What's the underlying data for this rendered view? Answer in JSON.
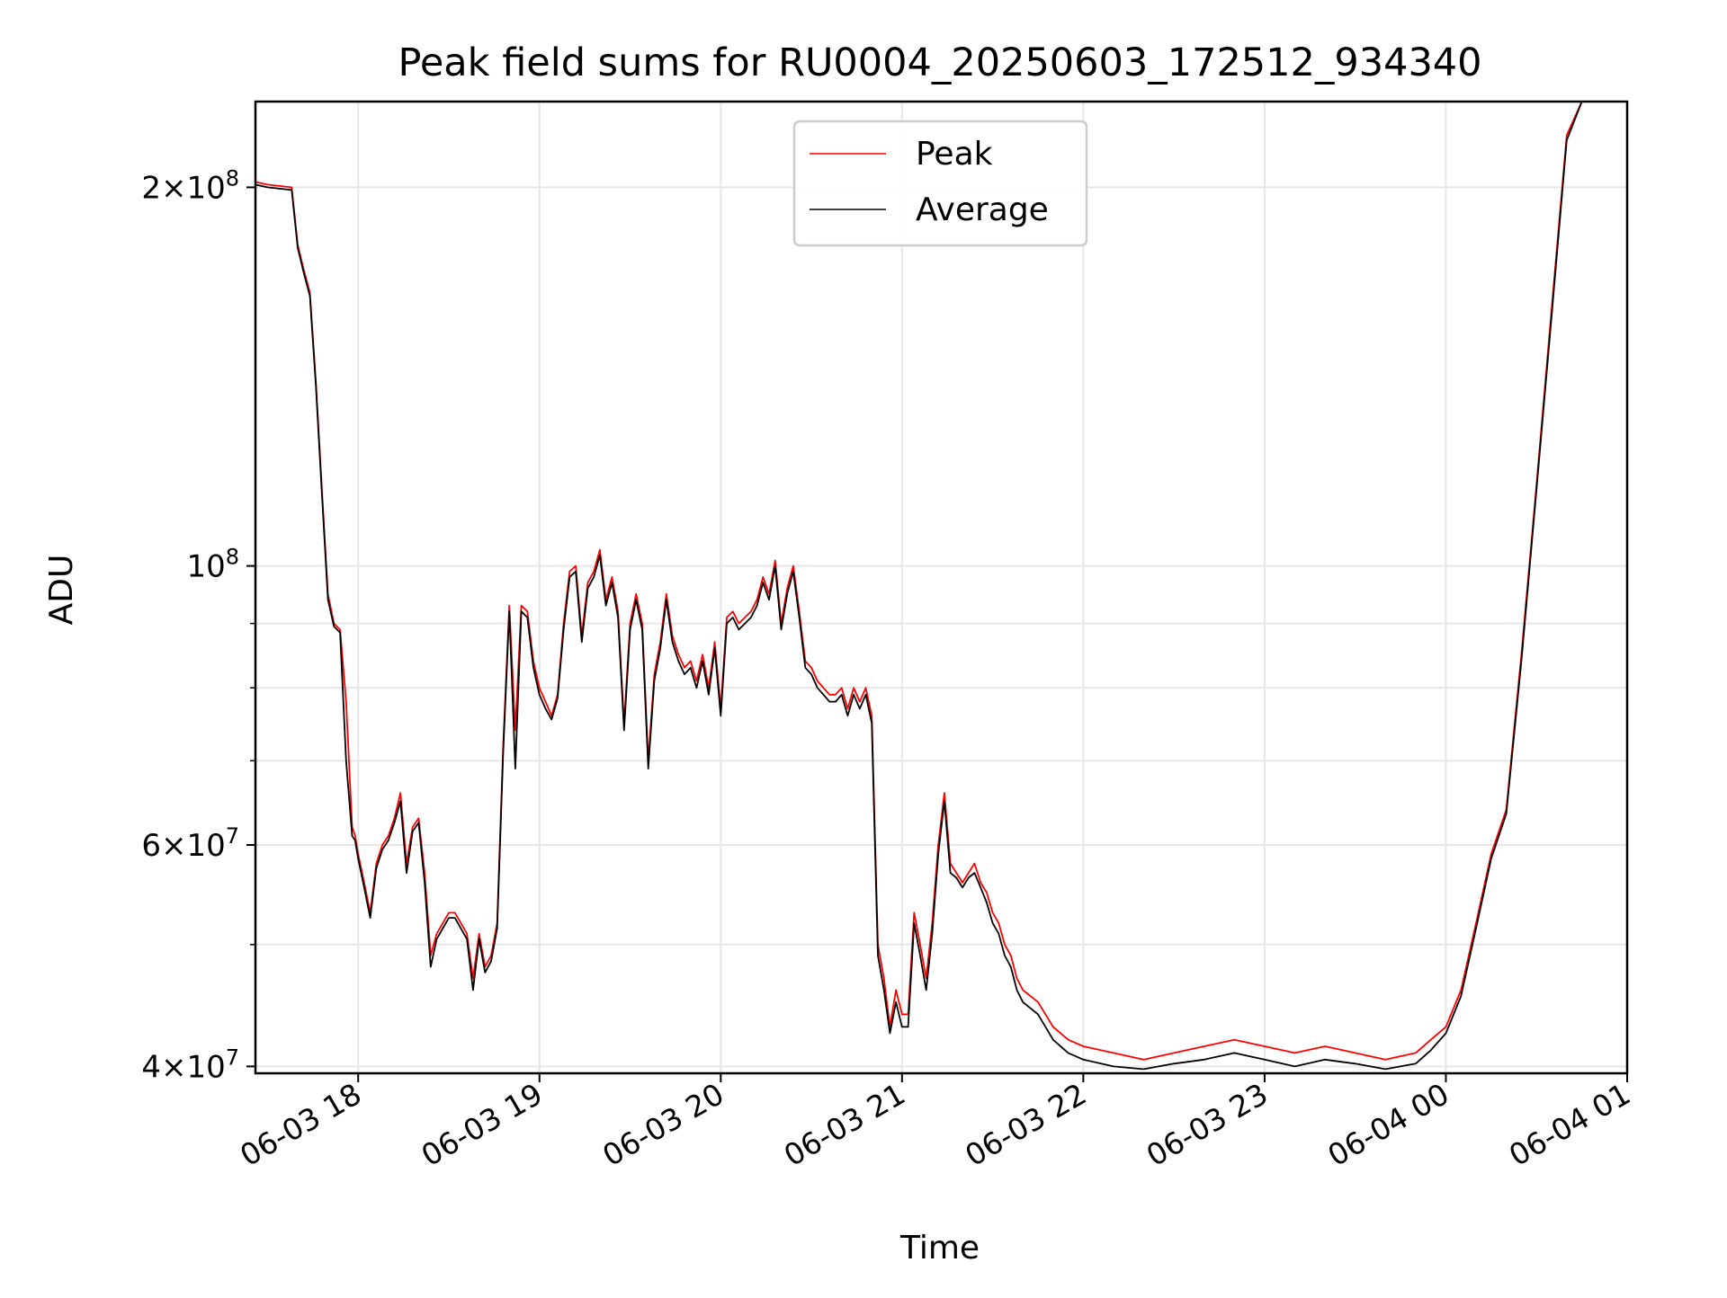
{
  "chart_data": {
    "type": "line",
    "title": "Peak field sums for RU0004_20250603_172512_934340",
    "xlabel": "Time",
    "ylabel": "ADU",
    "yscale": "log",
    "xlim": [
      "2025-06-03 17:26",
      "2025-06-04 01:00"
    ],
    "ylim": [
      39500000,
      234000000
    ],
    "x_ticks": [
      "06-03 18",
      "06-03 19",
      "06-03 20",
      "06-03 21",
      "06-03 22",
      "06-03 23",
      "06-04 00",
      "06-04 01"
    ],
    "y_ticks": [
      {
        "value": 40000000,
        "mantissa": "4",
        "exponent": "7"
      },
      {
        "value": 60000000,
        "mantissa": "6",
        "exponent": "7"
      },
      {
        "value": 100000000,
        "mantissa": "",
        "exponent": "8"
      },
      {
        "value": 200000000,
        "mantissa": "2",
        "exponent": "8"
      }
    ],
    "grid": true,
    "legend_position": "top-center",
    "series": [
      {
        "name": "Peak",
        "color": "#ff0000",
        "x": [
          "17:26",
          "17:30",
          "17:38",
          "17:40",
          "17:42",
          "17:44",
          "17:46",
          "17:48",
          "17:50",
          "17:52",
          "17:54",
          "17:56",
          "17:58",
          "17:59",
          "18:00",
          "18:02",
          "18:04",
          "18:06",
          "18:08",
          "18:10",
          "18:12",
          "18:14",
          "18:16",
          "18:18",
          "18:20",
          "18:22",
          "18:24",
          "18:26",
          "18:28",
          "18:30",
          "18:32",
          "18:34",
          "18:36",
          "18:38",
          "18:40",
          "18:42",
          "18:44",
          "18:46",
          "18:48",
          "18:50",
          "18:52",
          "18:54",
          "18:56",
          "18:58",
          "19:00",
          "19:02",
          "19:04",
          "19:06",
          "19:08",
          "19:10",
          "19:12",
          "19:14",
          "19:16",
          "19:18",
          "19:20",
          "19:22",
          "19:24",
          "19:26",
          "19:28",
          "19:30",
          "19:32",
          "19:34",
          "19:36",
          "19:38",
          "19:40",
          "19:42",
          "19:44",
          "19:46",
          "19:48",
          "19:50",
          "19:52",
          "19:54",
          "19:56",
          "19:58",
          "20:00",
          "20:02",
          "20:04",
          "20:06",
          "20:08",
          "20:10",
          "20:12",
          "20:14",
          "20:16",
          "20:18",
          "20:20",
          "20:22",
          "20:24",
          "20:26",
          "20:28",
          "20:30",
          "20:32",
          "20:34",
          "20:36",
          "20:38",
          "20:40",
          "20:42",
          "20:44",
          "20:46",
          "20:48",
          "20:50",
          "20:52",
          "20:54",
          "20:56",
          "20:58",
          "21:00",
          "21:02",
          "21:04",
          "21:06",
          "21:08",
          "21:10",
          "21:12",
          "21:14",
          "21:16",
          "21:18",
          "21:20",
          "21:22",
          "21:24",
          "21:26",
          "21:28",
          "21:30",
          "21:32",
          "21:34",
          "21:36",
          "21:38",
          "21:40",
          "21:45",
          "21:50",
          "21:55",
          "22:00",
          "22:10",
          "22:20",
          "22:30",
          "22:40",
          "22:50",
          "23:00",
          "23:10",
          "23:20",
          "23:30",
          "23:40",
          "23:50",
          "23:55",
          "00:00",
          "00:05",
          "00:10",
          "00:15",
          "00:20",
          "00:25",
          "00:30",
          "00:35",
          "00:40",
          "00:45",
          "00:48"
        ],
        "y": [
          202000000,
          201000000,
          200000000,
          180000000,
          172000000,
          165000000,
          140000000,
          115000000,
          95000000,
          90000000,
          89000000,
          78000000,
          62000000,
          61000000,
          59000000,
          56000000,
          53000000,
          58000000,
          60000000,
          61000000,
          63000000,
          66000000,
          58000000,
          62000000,
          63000000,
          57000000,
          49000000,
          51000000,
          52000000,
          53000000,
          53000000,
          52000000,
          51000000,
          47000000,
          51000000,
          48000000,
          49000000,
          52000000,
          72000000,
          93000000,
          74000000,
          93000000,
          92000000,
          84000000,
          80000000,
          78000000,
          76000000,
          79000000,
          90000000,
          99000000,
          100000000,
          88000000,
          97000000,
          99000000,
          103000000,
          94000000,
          98000000,
          92000000,
          75000000,
          90000000,
          95000000,
          90000000,
          70000000,
          82000000,
          87000000,
          95000000,
          88000000,
          85000000,
          83000000,
          84000000,
          81000000,
          85000000,
          80000000,
          87000000,
          77000000,
          91000000,
          92000000,
          90000000,
          91000000,
          92000000,
          94000000,
          98000000,
          95000000,
          101000000,
          90000000,
          96000000,
          100000000,
          92000000,
          84000000,
          83000000,
          81000000,
          80000000,
          79000000,
          79000000,
          80000000,
          77000000,
          80000000,
          78000000,
          80000000,
          76000000,
          50000000,
          47000000,
          43000000,
          46000000,
          44000000,
          44000000,
          53000000,
          50000000,
          47000000,
          52000000,
          60000000,
          66000000,
          58000000,
          57000000,
          56000000,
          57000000,
          58000000,
          56000000,
          55000000,
          53000000,
          52000000,
          50000000,
          49000000,
          47000000,
          46000000,
          45000000,
          43000000,
          42000000,
          41500000,
          41000000,
          40500000,
          41000000,
          41500000,
          42000000,
          41500000,
          41000000,
          41500000,
          41000000,
          40500000,
          41000000,
          42000000,
          43000000,
          46000000,
          52000000,
          59000000,
          64000000,
          85000000,
          116000000,
          160000000,
          220000000,
          234000000,
          234000000
        ]
      },
      {
        "name": "Average",
        "color": "#000000",
        "x": [
          "17:26",
          "17:30",
          "17:38",
          "17:40",
          "17:42",
          "17:44",
          "17:46",
          "17:48",
          "17:50",
          "17:52",
          "17:54",
          "17:56",
          "17:58",
          "17:59",
          "18:00",
          "18:02",
          "18:04",
          "18:06",
          "18:08",
          "18:10",
          "18:12",
          "18:14",
          "18:16",
          "18:18",
          "18:20",
          "18:22",
          "18:24",
          "18:26",
          "18:28",
          "18:30",
          "18:32",
          "18:34",
          "18:36",
          "18:38",
          "18:40",
          "18:42",
          "18:44",
          "18:46",
          "18:48",
          "18:50",
          "18:52",
          "18:54",
          "18:56",
          "18:58",
          "19:00",
          "19:02",
          "19:04",
          "19:06",
          "19:08",
          "19:10",
          "19:12",
          "19:14",
          "19:16",
          "19:18",
          "19:20",
          "19:22",
          "19:24",
          "19:26",
          "19:28",
          "19:30",
          "19:32",
          "19:34",
          "19:36",
          "19:38",
          "19:40",
          "19:42",
          "19:44",
          "19:46",
          "19:48",
          "19:50",
          "19:52",
          "19:54",
          "19:56",
          "19:58",
          "20:00",
          "20:02",
          "20:04",
          "20:06",
          "20:08",
          "20:10",
          "20:12",
          "20:14",
          "20:16",
          "20:18",
          "20:20",
          "20:22",
          "20:24",
          "20:26",
          "20:28",
          "20:30",
          "20:32",
          "20:34",
          "20:36",
          "20:38",
          "20:40",
          "20:42",
          "20:44",
          "20:46",
          "20:48",
          "20:50",
          "20:52",
          "20:54",
          "20:56",
          "20:58",
          "21:00",
          "21:02",
          "21:04",
          "21:06",
          "21:08",
          "21:10",
          "21:12",
          "21:14",
          "21:16",
          "21:18",
          "21:20",
          "21:22",
          "21:24",
          "21:26",
          "21:28",
          "21:30",
          "21:32",
          "21:34",
          "21:36",
          "21:38",
          "21:40",
          "21:45",
          "21:50",
          "21:55",
          "22:00",
          "22:10",
          "22:20",
          "22:30",
          "22:40",
          "22:50",
          "23:00",
          "23:10",
          "23:20",
          "23:30",
          "23:40",
          "23:50",
          "23:55",
          "00:00",
          "00:05",
          "00:10",
          "00:15",
          "00:20",
          "00:25",
          "00:30",
          "00:35",
          "00:40",
          "00:45",
          "00:48"
        ],
        "y": [
          201000000,
          200000000,
          199000000,
          179000000,
          171000000,
          164000000,
          139000000,
          114000000,
          94000000,
          89500000,
          88500000,
          70000000,
          61000000,
          60500000,
          58500000,
          55500000,
          52500000,
          57500000,
          59500000,
          60500000,
          62500000,
          65000000,
          57000000,
          61500000,
          62500000,
          56000000,
          48000000,
          50500000,
          51500000,
          52500000,
          52500000,
          51500000,
          50500000,
          46000000,
          50500000,
          47500000,
          48500000,
          51500000,
          71000000,
          92000000,
          69000000,
          92000000,
          91000000,
          83000000,
          79000000,
          77000000,
          75500000,
          78500000,
          89000000,
          98000000,
          99000000,
          87000000,
          96000000,
          98000000,
          102000000,
          93000000,
          97000000,
          91000000,
          74000000,
          89000000,
          94000000,
          89000000,
          69000000,
          81000000,
          86000000,
          94000000,
          87000000,
          84000000,
          82000000,
          83000000,
          80000000,
          84000000,
          79000000,
          86000000,
          76000000,
          90000000,
          91000000,
          89000000,
          90000000,
          91000000,
          93000000,
          97000000,
          94000000,
          100000000,
          89000000,
          95000000,
          99000000,
          91000000,
          83000000,
          82000000,
          80000000,
          79000000,
          78000000,
          78000000,
          79000000,
          76000000,
          79000000,
          77000000,
          79000000,
          75000000,
          49000000,
          46000000,
          42500000,
          45000000,
          43000000,
          43000000,
          52000000,
          49000000,
          46000000,
          51000000,
          59000000,
          65000000,
          57000000,
          56500000,
          55500000,
          56500000,
          57000000,
          55500000,
          54000000,
          52000000,
          51000000,
          49000000,
          48000000,
          46000000,
          45000000,
          44000000,
          42000000,
          41000000,
          40500000,
          40000000,
          39800000,
          40200000,
          40500000,
          41000000,
          40500000,
          40000000,
          40500000,
          40200000,
          39800000,
          40200000,
          41200000,
          42500000,
          45500000,
          51500000,
          58500000,
          63500000,
          84000000,
          115000000,
          158000000,
          218000000,
          234000000,
          234000000
        ]
      }
    ]
  }
}
